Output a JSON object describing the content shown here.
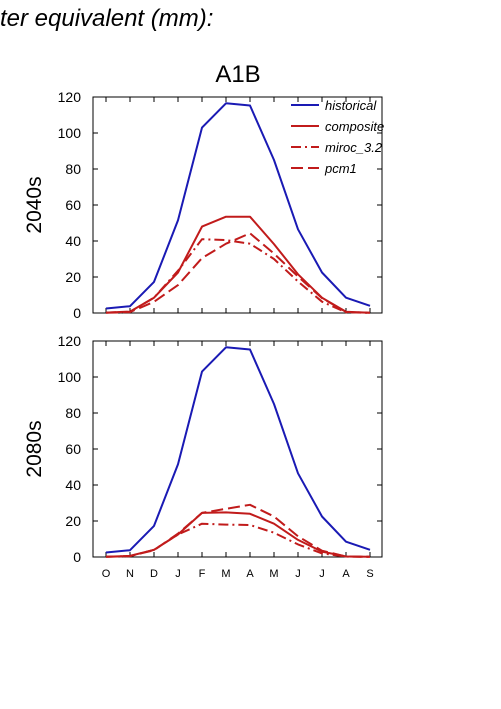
{
  "header": {
    "title": "ter equivalent (mm):",
    "scenario": "A1B"
  },
  "colors": {
    "historical": "#1a1ab4",
    "future": "#c11b1b"
  },
  "chart_data": [
    {
      "type": "line",
      "row_label": "2040s",
      "x": [
        "O",
        "N",
        "D",
        "J",
        "F",
        "M",
        "A",
        "M",
        "J",
        "J",
        "A",
        "S"
      ],
      "ylim": [
        0,
        120
      ],
      "yticks": [
        0,
        20,
        40,
        60,
        80,
        100,
        120
      ],
      "legend": "top-right",
      "series": [
        {
          "name": "historical",
          "style": "solid",
          "color": "#1a1ab4",
          "values": [
            2.5,
            3.8,
            17.3,
            51.5,
            103,
            116.5,
            115.3,
            85,
            46.5,
            22.5,
            8.5,
            4
          ]
        },
        {
          "name": "composite",
          "style": "solid",
          "color": "#c11b1b",
          "values": [
            0.2,
            0.8,
            8.5,
            22.5,
            48,
            53.5,
            53.5,
            38.3,
            21.5,
            8.5,
            0.7,
            0.1
          ]
        },
        {
          "name": "miroc_3.2",
          "style": "dashdot",
          "color": "#c11b1b",
          "values": [
            0.2,
            0.6,
            8.5,
            23.5,
            41,
            40.5,
            38.5,
            30,
            17.5,
            6.3,
            0.4,
            0.1
          ]
        },
        {
          "name": "pcm1",
          "style": "dash",
          "color": "#c11b1b",
          "values": [
            0.1,
            0.5,
            6.2,
            15.5,
            30.5,
            38.5,
            44.3,
            33,
            20.3,
            8.3,
            0.6,
            0.1
          ]
        }
      ]
    },
    {
      "type": "line",
      "row_label": "2080s",
      "x": [
        "O",
        "N",
        "D",
        "J",
        "F",
        "M",
        "A",
        "M",
        "J",
        "J",
        "A",
        "S"
      ],
      "ylim": [
        0,
        120
      ],
      "yticks": [
        0,
        20,
        40,
        60,
        80,
        100,
        120
      ],
      "series": [
        {
          "name": "historical",
          "style": "solid",
          "color": "#1a1ab4",
          "values": [
            2.5,
            3.8,
            17.3,
            51.5,
            103,
            116.5,
            115.3,
            85,
            46.5,
            22.5,
            8.5,
            4
          ]
        },
        {
          "name": "composite",
          "style": "solid",
          "color": "#c11b1b",
          "values": [
            0.1,
            0.6,
            4,
            12.5,
            24.5,
            24.8,
            24,
            18.5,
            9.5,
            3,
            0.3,
            0.1
          ]
        },
        {
          "name": "miroc_3.2",
          "style": "dashdot",
          "color": "#c11b1b",
          "values": [
            0.1,
            0.5,
            4,
            12.5,
            18.5,
            18,
            17.8,
            13.5,
            7,
            2,
            0.2,
            0.1
          ]
        },
        {
          "name": "pcm1",
          "style": "dash",
          "color": "#c11b1b",
          "values": [
            0.1,
            0.5,
            3.8,
            13,
            24.5,
            26.8,
            29,
            22.5,
            11.5,
            3.5,
            0.3,
            0.1
          ]
        }
      ]
    }
  ]
}
